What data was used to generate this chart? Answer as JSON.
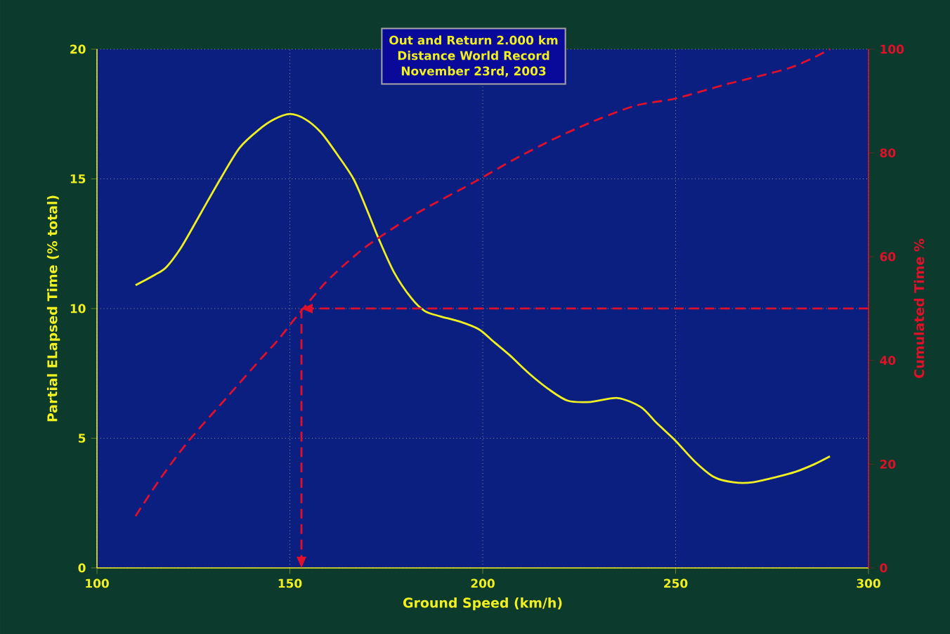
{
  "chart_data": {
    "type": "line",
    "title": "Out and Return 2.000 km",
    "subtitle": "Distance World Record",
    "annotations": [
      "November 23rd, 2003"
    ],
    "xlabel": "Ground Speed (km/h)",
    "ylabel": "Partial ELapsed Time (% total)",
    "y2label": "Cumulated Time %",
    "xlim": [
      100,
      300
    ],
    "xticks": [
      100,
      150,
      200,
      250,
      300
    ],
    "ylim": [
      0,
      20
    ],
    "yticks": [
      0,
      5,
      10,
      15,
      20
    ],
    "y2lim": [
      0,
      100
    ],
    "y2ticks": [
      0,
      20,
      40,
      60,
      80,
      100
    ],
    "grid": true,
    "marker": "none",
    "ref_lines": [
      {
        "axis": "y2",
        "value": 50,
        "color": "#e0102a",
        "line_style": "dashed"
      },
      {
        "axis": "x",
        "value": 153,
        "color": "#e0102a",
        "line_style": "dashed"
      }
    ],
    "series": [
      {
        "color": "#f0f020",
        "line_style": "solid",
        "x": [
          110,
          115,
          118,
          122,
          127,
          132,
          137,
          142,
          146,
          150,
          154,
          158,
          162,
          166.5,
          170,
          173,
          177,
          181.5,
          185,
          189,
          194,
          199,
          203,
          207,
          212,
          217,
          222,
          228,
          235,
          241,
          245,
          250,
          255,
          260,
          265,
          270,
          276,
          281,
          286,
          290
        ],
        "values": [
          10.9,
          11.3,
          11.6,
          12.4,
          13.7,
          15.0,
          16.2,
          16.9,
          17.3,
          17.5,
          17.3,
          16.8,
          16.0,
          15.0,
          13.8,
          12.7,
          11.4,
          10.4,
          9.9,
          9.7,
          9.5,
          9.2,
          8.7,
          8.2,
          7.5,
          6.9,
          6.45,
          6.4,
          6.55,
          6.2,
          5.6,
          4.9,
          4.1,
          3.5,
          3.3,
          3.3,
          3.5,
          3.7,
          4.0,
          4.3
        ]
      },
      {
        "color": "#e0102a",
        "line_style": "dashed",
        "axis": "y2",
        "x": [
          110,
          116.5,
          124,
          133.6,
          142,
          147,
          151.8,
          159,
          165,
          171,
          183,
          197.6,
          208,
          219,
          230,
          240,
          250,
          263,
          280,
          290
        ],
        "values": [
          10,
          17.3,
          24.7,
          32.8,
          39.9,
          44,
          48.5,
          54.8,
          59,
          62.6,
          68.4,
          74.3,
          78.7,
          82.9,
          86.5,
          89.2,
          90.5,
          93.2,
          96.5,
          100
        ]
      }
    ]
  }
}
